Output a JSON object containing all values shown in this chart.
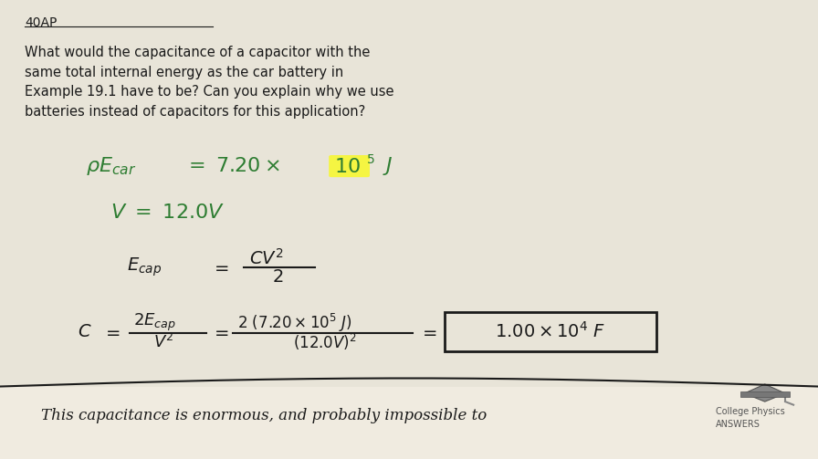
{
  "background_color": "#e8e4d8",
  "bottom_bar_color": "#f0ebe0",
  "problem_label": "40AP",
  "question_text": "What would the capacitance of a capacitor with the\nsame total internal energy as the car battery in\nExample 19.1 have to be? Can you explain why we use\nbatteries instead of capacitors for this application?",
  "green_color": "#2e7d32",
  "highlight_color": "#f5f542",
  "black": "#1a1a1a",
  "gray": "#666666",
  "logo_text": "College Physics\nANSWERS",
  "bottom_text": "This capacitance is enormous, and probably impossible to",
  "fig_width": 8.96,
  "fig_height": 5.03
}
